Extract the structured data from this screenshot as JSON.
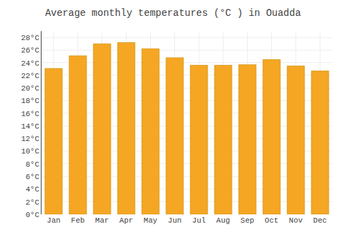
{
  "chart_data": {
    "type": "bar",
    "title": "Average monthly temperatures (°C ) in Ouadda",
    "categories": [
      "Jan",
      "Feb",
      "Mar",
      "Apr",
      "May",
      "Jun",
      "Jul",
      "Aug",
      "Sep",
      "Oct",
      "Nov",
      "Dec"
    ],
    "values": [
      23.1,
      25.1,
      27.0,
      27.2,
      26.2,
      24.8,
      23.6,
      23.6,
      23.7,
      24.5,
      23.5,
      22.7
    ],
    "color": "#F5A623",
    "ylim": [
      0,
      29
    ],
    "yticks": [
      {
        "value": 0,
        "label": "0°C"
      },
      {
        "value": 2,
        "label": "2°C"
      },
      {
        "value": 4,
        "label": "4°C"
      },
      {
        "value": 6,
        "label": "6°C"
      },
      {
        "value": 8,
        "label": "8°C"
      },
      {
        "value": 10,
        "label": "10°C"
      },
      {
        "value": 12,
        "label": "12°C"
      },
      {
        "value": 14,
        "label": "14°C"
      },
      {
        "value": 16,
        "label": "16°C"
      },
      {
        "value": 18,
        "label": "18°C"
      },
      {
        "value": 20,
        "label": "20°C"
      },
      {
        "value": 22,
        "label": "22°C"
      },
      {
        "value": 24,
        "label": "24°C"
      },
      {
        "value": 26,
        "label": "26°C"
      },
      {
        "value": 28,
        "label": "28°C"
      }
    ],
    "grid": true
  }
}
